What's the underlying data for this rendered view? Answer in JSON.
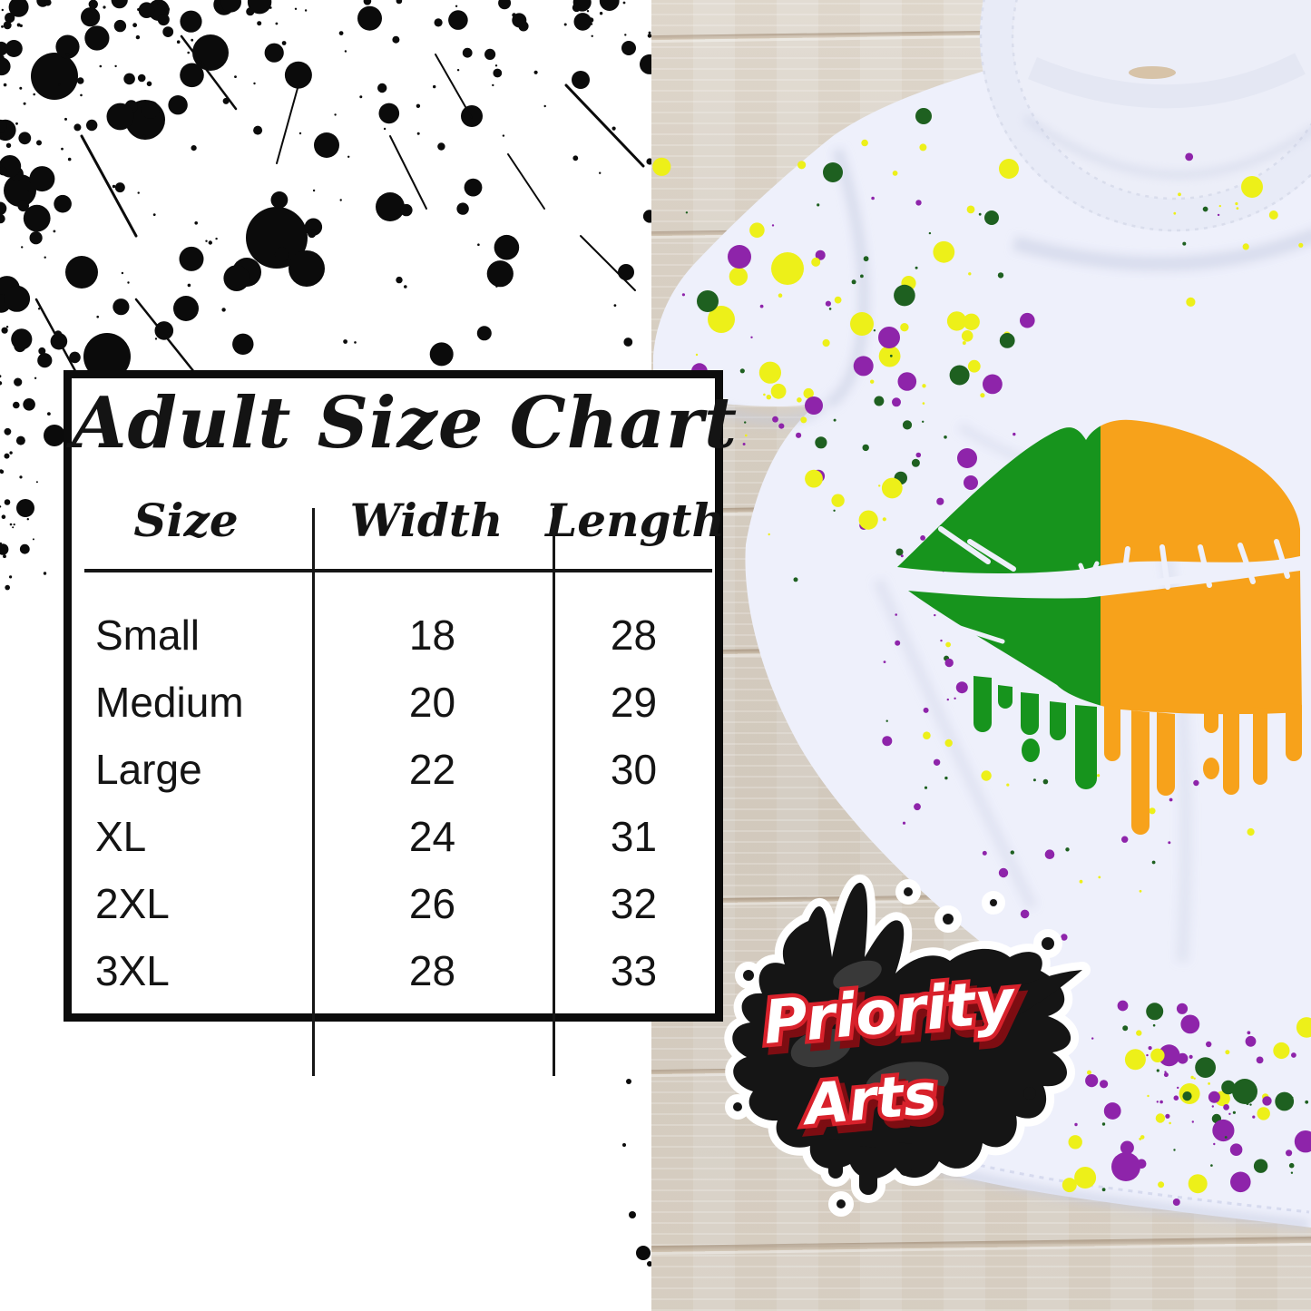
{
  "size_chart": {
    "title": "Adult Size Chart",
    "columns": [
      "Size",
      "Width",
      "Length"
    ],
    "rows": [
      [
        "Small",
        "18",
        "28"
      ],
      [
        "Medium",
        "20",
        "29"
      ],
      [
        "Large",
        "22",
        "30"
      ],
      [
        "XL",
        "24",
        "31"
      ],
      [
        "2XL",
        "26",
        "32"
      ],
      [
        "3XL",
        "28",
        "33"
      ]
    ]
  },
  "chart_data": {
    "type": "table",
    "title": "Adult Size Chart",
    "columns": [
      "Size",
      "Width",
      "Length"
    ],
    "rows": [
      [
        "Small",
        18,
        28
      ],
      [
        "Medium",
        20,
        29
      ],
      [
        "Large",
        22,
        30
      ],
      [
        "XL",
        24,
        31
      ],
      [
        "2XL",
        26,
        32
      ],
      [
        "3XL",
        28,
        33
      ]
    ]
  },
  "logo": {
    "line1": "Priority",
    "line2": "Arts"
  },
  "colors": {
    "lips_green": "#17941D",
    "lips_orange": "#F7A21B",
    "splat_purple": "#8E24AA",
    "splat_yellow": "#EDF019",
    "splat_green": "#1E6020",
    "logo_red": "#D8212B",
    "logo_red_dark": "#7D0D12",
    "ink_black": "#0B0B0B",
    "shirt_white": "#EEF0FB",
    "wood_tan": "#D8D1C7"
  }
}
